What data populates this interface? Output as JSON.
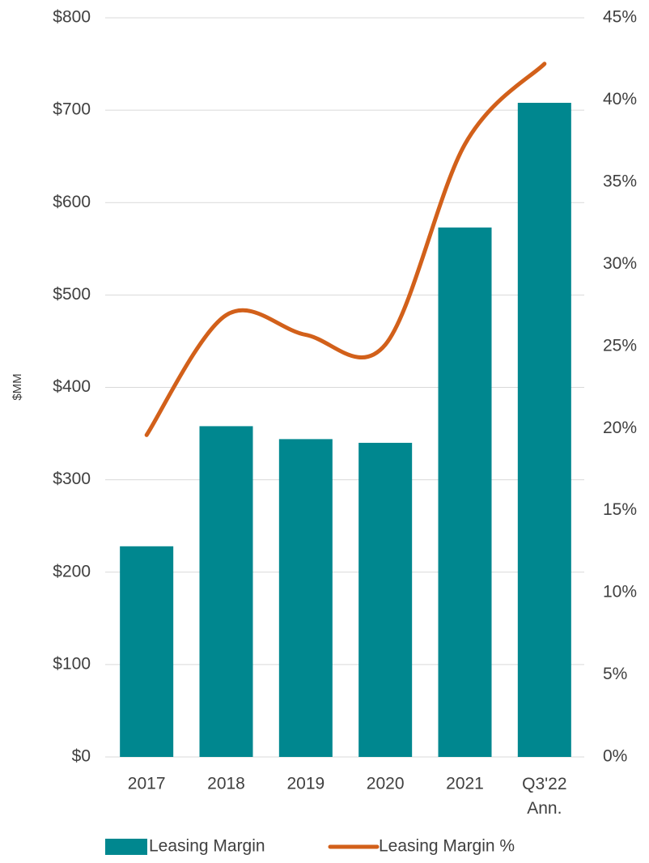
{
  "chart_data": {
    "type": "bar-line",
    "y_label": "$MM",
    "categories": [
      "2017",
      "2018",
      "2019",
      "2020",
      "2021",
      "Q3'22 Ann."
    ],
    "series": [
      {
        "name": "Leasing Margin",
        "type": "bar",
        "color": "#00878f",
        "values": [
          228,
          358,
          344,
          340,
          573,
          708
        ]
      },
      {
        "name": "Leasing Margin %",
        "type": "line",
        "axis": "y2",
        "color": "#d2601a",
        "values": [
          19.6,
          26.9,
          25.7,
          25.1,
          37.3,
          42.2
        ]
      }
    ],
    "ylim": [
      0,
      800
    ],
    "yticks": [
      {
        "value": 0,
        "label": "$0"
      },
      {
        "value": 100,
        "label": "$100"
      },
      {
        "value": 200,
        "label": "$200"
      },
      {
        "value": 300,
        "label": "$300"
      },
      {
        "value": 400,
        "label": "$400"
      },
      {
        "value": 500,
        "label": "$500"
      },
      {
        "value": 600,
        "label": "$600"
      },
      {
        "value": 700,
        "label": "$700"
      },
      {
        "value": 800,
        "label": "$800"
      }
    ],
    "y2lim": [
      0,
      45
    ],
    "y2ticks": [
      {
        "value": 0,
        "label": "0%"
      },
      {
        "value": 5,
        "label": "5%"
      },
      {
        "value": 10,
        "label": "10%"
      },
      {
        "value": 15,
        "label": "15%"
      },
      {
        "value": 20,
        "label": "20%"
      },
      {
        "value": 25,
        "label": "25%"
      },
      {
        "value": 30,
        "label": "30%"
      },
      {
        "value": 35,
        "label": "35%"
      },
      {
        "value": 40,
        "label": "40%"
      },
      {
        "value": 45,
        "label": "45%"
      }
    ],
    "grid": true,
    "legend": "bottom"
  }
}
